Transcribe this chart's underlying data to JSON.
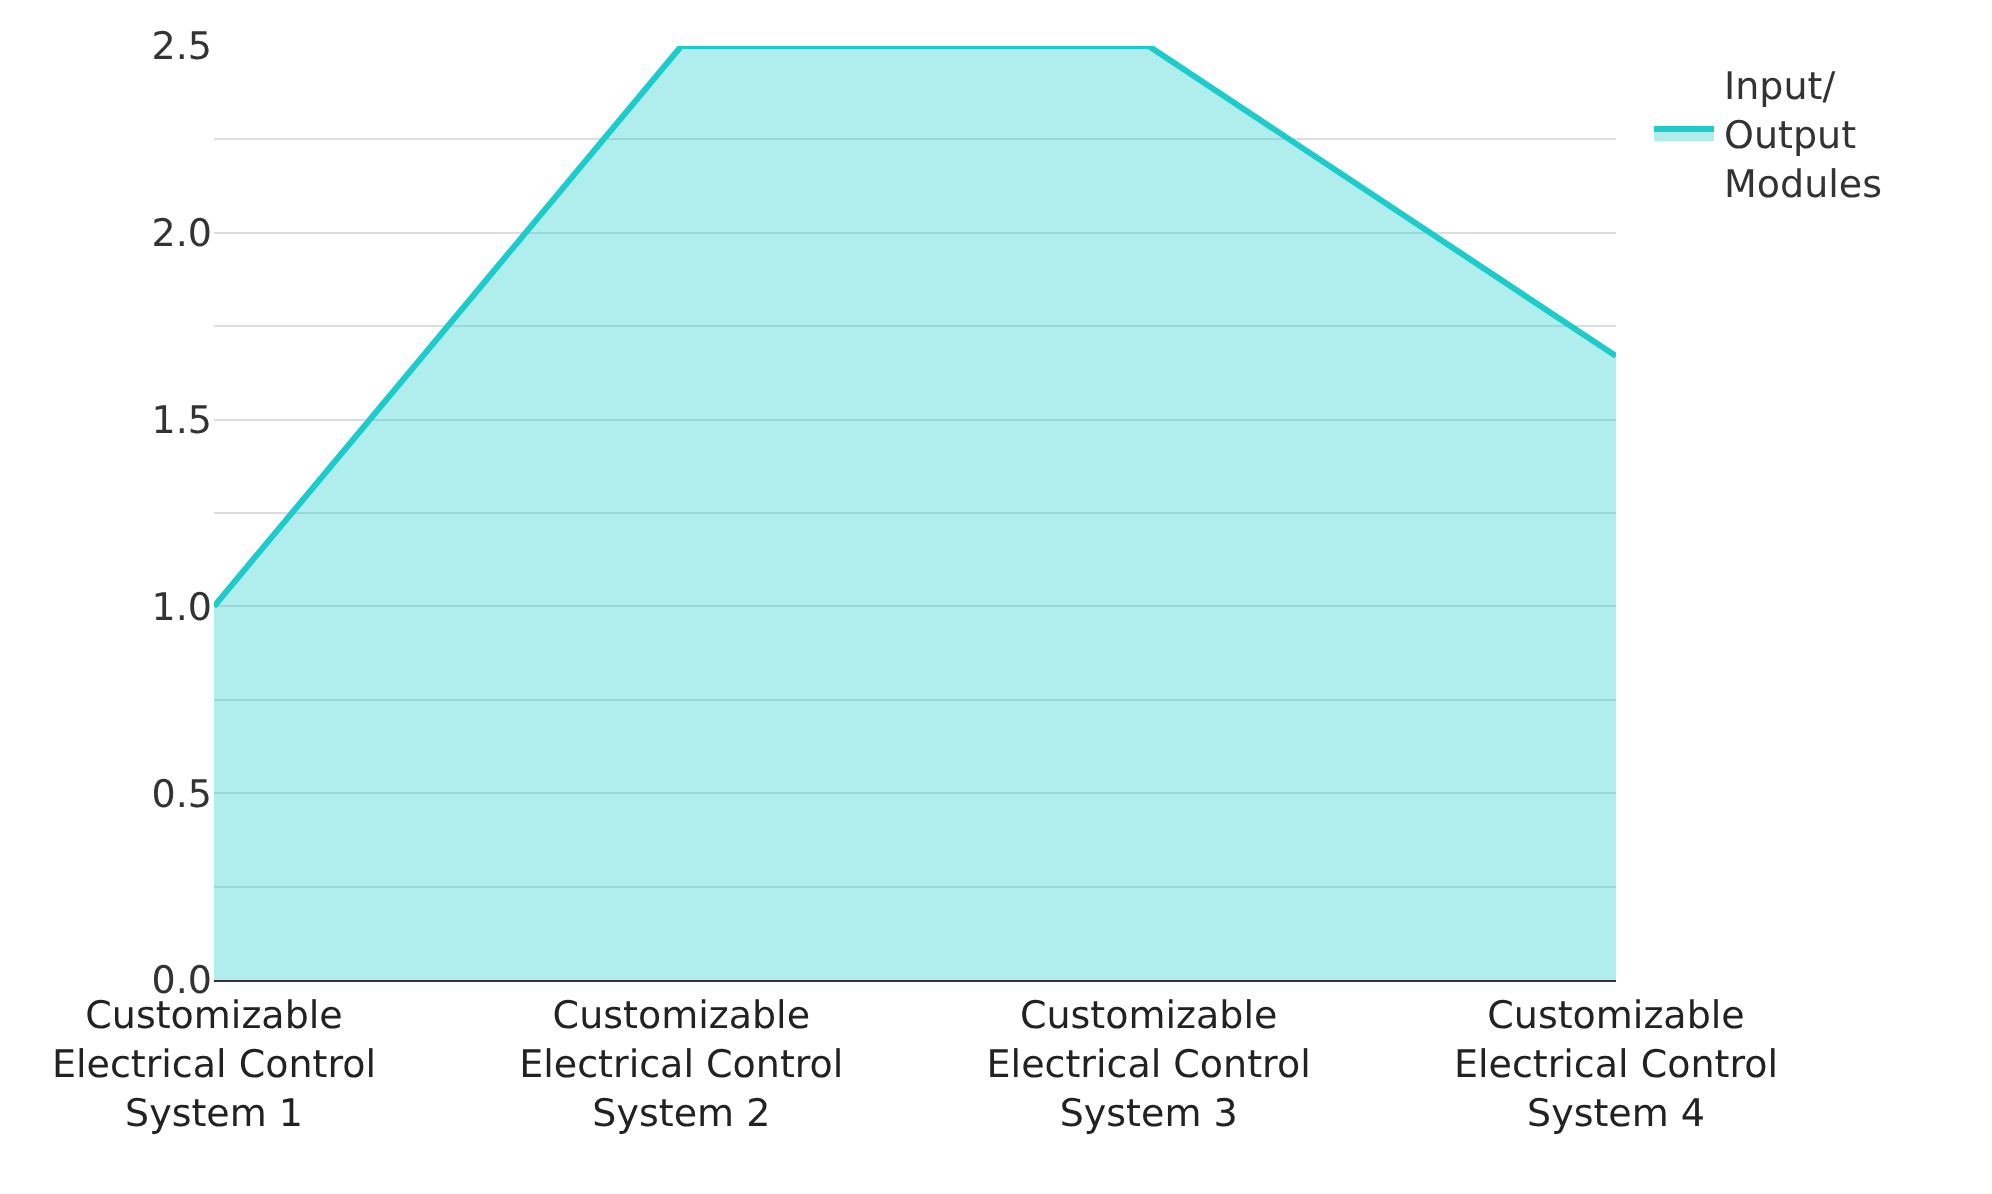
{
  "chart_data": {
    "type": "area",
    "categories": [
      "Customizable Electrical Control System 1",
      "Customizable Electrical Control System 2",
      "Customizable Electrical Control System 3",
      "Customizable Electrical Control System 4"
    ],
    "series": [
      {
        "name": "Input/ Output Modules",
        "color": "#1ecbcb",
        "values": [
          1.0,
          2.5,
          2.5,
          1.67
        ]
      }
    ],
    "ylim": [
      0,
      2.5
    ],
    "yticks": [
      {
        "value": 0,
        "label": "0.0"
      },
      {
        "value": 0.25,
        "label": null
      },
      {
        "value": 0.5,
        "label": "0.5"
      },
      {
        "value": 0.75,
        "label": null
      },
      {
        "value": 1,
        "label": "1.0"
      },
      {
        "value": 1.25,
        "label": null
      },
      {
        "value": 1.5,
        "label": "1.5"
      },
      {
        "value": 1.75,
        "label": null
      },
      {
        "value": 2,
        "label": "2.0"
      },
      {
        "value": 2.25,
        "label": null
      },
      {
        "value": 2.5,
        "label": "2.5"
      }
    ],
    "grid": "y",
    "legend": "top right"
  }
}
